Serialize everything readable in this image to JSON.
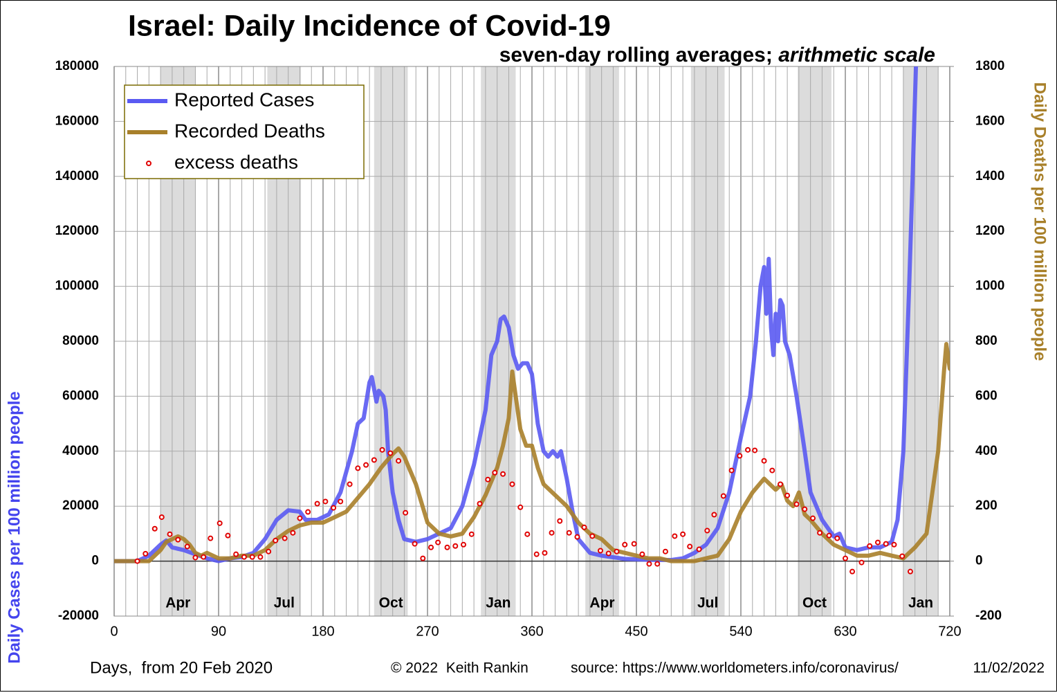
{
  "chart_data": {
    "type": "line",
    "title": "Israel: Daily Incidence of Covid-19",
    "subtitle": [
      "seven-day rolling averages; ",
      "arithmetic scale"
    ],
    "xlabel": "Days,  from 20 Feb 2020",
    "ylabel": "Daily Cases per 100 million people",
    "y2label": "Daily Deaths per 100 million people",
    "credit": "© 2022  Keith Rankin",
    "source": "source: https://www.worldometers.info/coronavirus/",
    "date": "11/02/2022",
    "xlim": [
      0,
      720
    ],
    "xticks": [
      0,
      90,
      180,
      270,
      360,
      450,
      540,
      630,
      720
    ],
    "xminorticks": [
      10,
      20,
      30,
      40,
      50,
      60,
      70,
      80,
      100,
      110,
      120,
      130,
      140,
      150,
      160,
      170,
      190,
      200,
      210,
      220,
      230,
      240,
      250,
      260,
      280,
      290,
      300,
      310,
      320,
      330,
      340,
      350,
      370,
      380,
      390,
      400,
      410,
      420,
      430,
      440,
      460,
      470,
      480,
      490,
      500,
      510,
      520,
      530,
      550,
      560,
      570,
      580,
      590,
      600,
      610,
      620,
      640,
      650,
      660,
      670,
      680,
      690,
      700,
      710
    ],
    "ylim": [
      -20000,
      180000
    ],
    "yticks": [
      -20000,
      0,
      20000,
      40000,
      60000,
      80000,
      100000,
      120000,
      140000,
      160000,
      180000
    ],
    "y2lim": [
      -200,
      1800
    ],
    "y2ticks": [
      -200,
      0,
      200,
      400,
      600,
      800,
      1000,
      1200,
      1400,
      1600,
      1800
    ],
    "grid": true,
    "legend": "upper left",
    "bands": [
      {
        "label": "Apr",
        "x": [
          40,
          70
        ]
      },
      {
        "label": "Jul",
        "x": [
          132,
          161
        ]
      },
      {
        "label": "Oct",
        "x": [
          224,
          253
        ]
      },
      {
        "label": "Jan",
        "x": [
          316,
          346
        ]
      },
      {
        "label": "Apr",
        "x": [
          406,
          435
        ]
      },
      {
        "label": "Jul",
        "x": [
          497,
          526
        ]
      },
      {
        "label": "Oct",
        "x": [
          589,
          618
        ]
      },
      {
        "label": "Jan",
        "x": [
          680,
          710
        ]
      }
    ],
    "series": [
      {
        "name": "Reported Cases",
        "color": "#5a5af2",
        "mode": "line",
        "axis": "y",
        "x": [
          0,
          20,
          30,
          40,
          45,
          50,
          60,
          70,
          80,
          90,
          100,
          110,
          120,
          130,
          140,
          150,
          160,
          165,
          175,
          185,
          195,
          205,
          210,
          215,
          220,
          222,
          226,
          228,
          232,
          234,
          236,
          240,
          245,
          250,
          260,
          270,
          280,
          290,
          300,
          310,
          320,
          325,
          330,
          333,
          336,
          340,
          344,
          348,
          352,
          356,
          360,
          365,
          370,
          374,
          378,
          382,
          385,
          390,
          395,
          400,
          410,
          420,
          440,
          460,
          480,
          490,
          500,
          510,
          520,
          530,
          540,
          548,
          553,
          557,
          560,
          562,
          564,
          566,
          568,
          570,
          572,
          574,
          576,
          578,
          582,
          588,
          595,
          600,
          610,
          620,
          625,
          630,
          640,
          650,
          660,
          670,
          675,
          680,
          685,
          688,
          691
        ],
        "values": [
          0,
          0,
          2000,
          6000,
          7500,
          5000,
          4000,
          2500,
          1000,
          0,
          1000,
          1500,
          3000,
          8000,
          15000,
          18500,
          18000,
          15000,
          15000,
          17000,
          25000,
          40000,
          50000,
          52000,
          65000,
          67000,
          58000,
          62000,
          60000,
          55000,
          40000,
          25000,
          15000,
          8000,
          7000,
          8000,
          10000,
          12000,
          20000,
          35000,
          55000,
          75000,
          80000,
          88000,
          89000,
          85000,
          75000,
          70000,
          72000,
          72000,
          68000,
          50000,
          40000,
          38000,
          40000,
          38000,
          40000,
          30000,
          18000,
          8000,
          3000,
          2000,
          800,
          500,
          400,
          1000,
          3000,
          6000,
          12000,
          25000,
          45000,
          60000,
          80000,
          100000,
          107000,
          90000,
          110000,
          85000,
          75000,
          90000,
          80000,
          95000,
          93000,
          80000,
          75000,
          60000,
          40000,
          25000,
          15000,
          9000,
          10000,
          5000,
          4000,
          5000,
          5000,
          7000,
          15000,
          40000,
          100000,
          140000,
          182000
        ]
      },
      {
        "name": "Recorded Deaths",
        "color": "#a8802a",
        "mode": "line",
        "axis": "y2",
        "x": [
          0,
          30,
          40,
          45,
          50,
          55,
          60,
          65,
          70,
          75,
          80,
          90,
          100,
          110,
          120,
          130,
          140,
          150,
          160,
          170,
          180,
          190,
          200,
          210,
          220,
          230,
          240,
          245,
          250,
          260,
          270,
          280,
          290,
          300,
          310,
          320,
          330,
          335,
          340,
          343,
          346,
          350,
          355,
          360,
          365,
          370,
          380,
          390,
          400,
          410,
          420,
          430,
          440,
          450,
          460,
          470,
          480,
          490,
          500,
          510,
          520,
          530,
          540,
          550,
          560,
          565,
          570,
          575,
          580,
          585,
          590,
          595,
          600,
          610,
          620,
          630,
          640,
          650,
          660,
          670,
          680,
          690,
          700,
          705,
          710,
          715,
          717,
          720
        ],
        "values": [
          0,
          0,
          40,
          70,
          80,
          90,
          80,
          60,
          30,
          20,
          30,
          10,
          10,
          20,
          20,
          40,
          80,
          110,
          130,
          140,
          140,
          160,
          180,
          230,
          280,
          340,
          390,
          410,
          380,
          280,
          140,
          100,
          90,
          100,
          160,
          240,
          340,
          420,
          520,
          690,
          600,
          480,
          420,
          420,
          340,
          280,
          240,
          200,
          140,
          100,
          80,
          40,
          30,
          20,
          10,
          10,
          0,
          0,
          0,
          10,
          20,
          80,
          180,
          250,
          300,
          280,
          260,
          280,
          220,
          200,
          250,
          170,
          150,
          100,
          60,
          40,
          20,
          20,
          30,
          20,
          10,
          50,
          100,
          250,
          400,
          690,
          790,
          700
        ]
      },
      {
        "name": "excess deaths",
        "color": "#e00000",
        "mode": "markers",
        "axis": "y2",
        "x": [
          20,
          27,
          35,
          41,
          48,
          55,
          63,
          70,
          77,
          83,
          91,
          98,
          105,
          112,
          119,
          126,
          133,
          139,
          147,
          154,
          160,
          167,
          175,
          182,
          189,
          195,
          203,
          210,
          217,
          224,
          231,
          238,
          245,
          251,
          259,
          266,
          273,
          279,
          287,
          294,
          301,
          308,
          315,
          322,
          328,
          335,
          343,
          350,
          356,
          364,
          371,
          377,
          384,
          392,
          399,
          405,
          412,
          419,
          426,
          433,
          440,
          448,
          455,
          461,
          468,
          475,
          483,
          490,
          496,
          504,
          511,
          517,
          525,
          532,
          539,
          546,
          552,
          560,
          567,
          574,
          580,
          588,
          595,
          602,
          608,
          616,
          623,
          630,
          636,
          644,
          651,
          658,
          665,
          672,
          679,
          686
        ],
        "values": [
          0,
          27,
          118,
          160,
          98,
          78,
          53,
          13,
          15,
          83,
          138,
          93,
          25,
          15,
          15,
          15,
          35,
          75,
          83,
          103,
          156,
          179,
          209,
          217,
          194,
          217,
          280,
          338,
          350,
          368,
          405,
          393,
          365,
          176,
          63,
          10,
          50,
          68,
          50,
          55,
          60,
          98,
          209,
          297,
          322,
          317,
          280,
          196,
          98,
          25,
          30,
          103,
          146,
          103,
          88,
          123,
          91,
          38,
          28,
          35,
          60,
          63,
          25,
          -10,
          -10,
          35,
          91,
          98,
          53,
          43,
          111,
          169,
          237,
          330,
          383,
          405,
          403,
          365,
          330,
          280,
          239,
          207,
          189,
          156,
          103,
          93,
          83,
          10,
          -38,
          -5,
          55,
          68,
          63,
          60,
          18,
          -38
        ]
      }
    ]
  }
}
